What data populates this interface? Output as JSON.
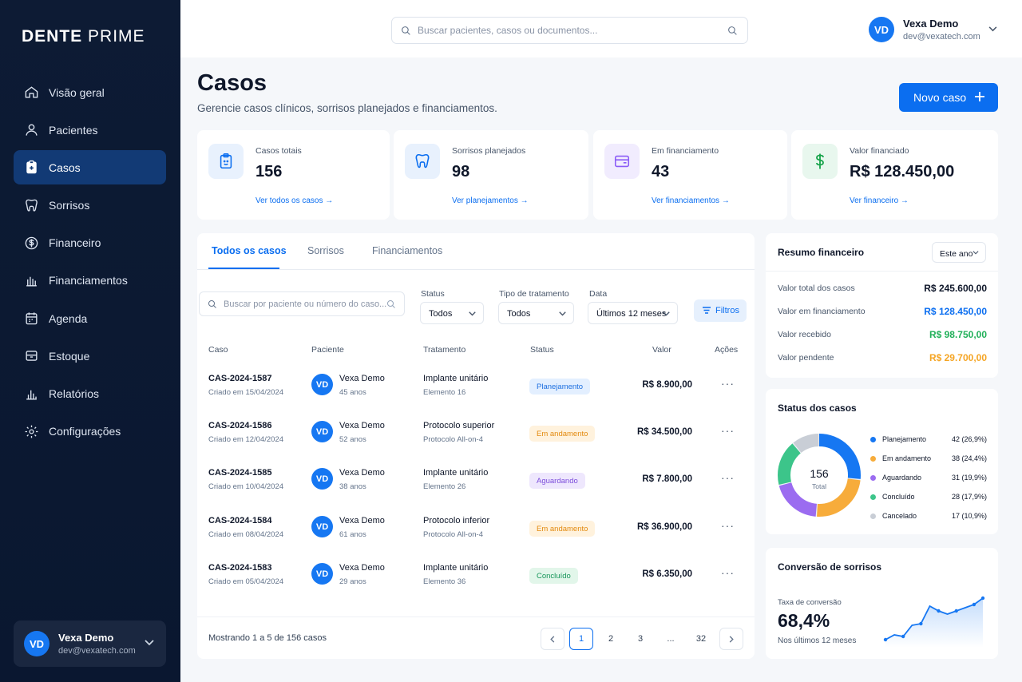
{
  "app": {
    "brand_bold": "DENTE",
    "brand_light": "PRIME"
  },
  "sidebar": {
    "items": [
      {
        "label": "Visão geral",
        "icon": "home-icon"
      },
      {
        "label": "Pacientes",
        "icon": "user-icon"
      },
      {
        "label": "Casos",
        "icon": "clipboard-icon",
        "active": true
      },
      {
        "label": "Sorrisos",
        "icon": "tooth-icon"
      },
      {
        "label": "Financeiro",
        "icon": "dollar-icon"
      },
      {
        "label": "Financiamentos",
        "icon": "bank-icon"
      },
      {
        "label": "Agenda",
        "icon": "calendar-icon"
      },
      {
        "label": "Estoque",
        "icon": "box-icon"
      },
      {
        "label": "Relatórios",
        "icon": "bar-chart-icon"
      },
      {
        "label": "Configurações",
        "icon": "gear-icon"
      }
    ],
    "user": {
      "initials": "VD",
      "name": "Vexa Demo",
      "email": "dev@vexatech.com"
    }
  },
  "header": {
    "search_placeholder": "Buscar pacientes, casos ou documentos...",
    "user": {
      "initials": "VD",
      "name": "Vexa Demo",
      "email": "dev@vexatech.com"
    }
  },
  "page": {
    "title": "Casos",
    "subtitle": "Gerencie casos clínicos, sorrisos planejados e financiamentos.",
    "new_button": "Novo caso"
  },
  "stats": [
    {
      "label": "Casos totais",
      "value": "156",
      "link": "Ver todos os casos →",
      "icon": "clipboard-icon",
      "color": "#0b6ef0",
      "bg": "#e8f1fd"
    },
    {
      "label": "Sorrisos planejados",
      "value": "98",
      "link": "Ver planejamentos →",
      "icon": "tooth-icon",
      "color": "#0b6ef0",
      "bg": "#e8f1fd"
    },
    {
      "label": "Em financiamento",
      "value": "43",
      "link": "Ver financiamentos →",
      "icon": "wallet-icon",
      "color": "#8b5cf6",
      "bg": "#f1ecfe"
    },
    {
      "label": "Valor financiado",
      "value": "R$ 128.450,00",
      "link": "Ver financeiro →",
      "icon": "dollar-icon",
      "color": "#16a34a",
      "bg": "#e8f7ee"
    }
  ],
  "tabs": [
    "Todos os casos",
    "Sorrisos",
    "Financiamentos"
  ],
  "filters": {
    "search_placeholder": "Buscar por paciente ou número do caso...",
    "status_label": "Status",
    "status_value": "Todos",
    "treatment_label": "Tipo de tratamento",
    "treatment_value": "Todos",
    "date_label": "Data",
    "date_value": "Últimos 12 meses",
    "filter_button": "Filtros"
  },
  "table": {
    "headers": [
      "Caso",
      "Paciente",
      "Tratamento",
      "Status",
      "Valor",
      "Ações"
    ],
    "rows": [
      {
        "id": "CAS-2024-1587",
        "date": "Criado em 15/04/2024",
        "initials": "VD",
        "patient": "Vexa Demo",
        "age": "45 anos",
        "treatment": "Implante unitário",
        "detail": "Elemento 16",
        "status": "Planejamento",
        "status_color": "#1d6fe0",
        "status_bg": "#e3efff",
        "value": "R$ 8.900,00",
        "more": "···"
      },
      {
        "id": "CAS-2024-1586",
        "date": "Criado em 12/04/2024",
        "initials": "VD",
        "patient": "Vexa Demo",
        "age": "52 anos",
        "treatment": "Protocolo superior",
        "detail": "Protocolo All-on-4",
        "status": "Em andamento",
        "status_color": "#e38a0f",
        "status_bg": "#fff2dd",
        "value": "R$ 34.500,00",
        "more": "···"
      },
      {
        "id": "CAS-2024-1585",
        "date": "Criado em 10/04/2024",
        "initials": "VD",
        "patient": "Vexa Demo",
        "age": "38 anos",
        "treatment": "Implante unitário",
        "detail": "Elemento 26",
        "status": "Aguardando",
        "status_color": "#7c4ddb",
        "status_bg": "#eee7fd",
        "value": "R$ 7.800,00",
        "more": "···"
      },
      {
        "id": "CAS-2024-1584",
        "date": "Criado em 08/04/2024",
        "initials": "VD",
        "patient": "Vexa Demo",
        "age": "61 anos",
        "treatment": "Protocolo inferior",
        "detail": "Protocolo All-on-4",
        "status": "Em andamento",
        "status_color": "#e38a0f",
        "status_bg": "#fff2dd",
        "value": "R$ 36.900,00",
        "more": "···"
      },
      {
        "id": "CAS-2024-1583",
        "date": "Criado em 05/04/2024",
        "initials": "VD",
        "patient": "Vexa Demo",
        "age": "29 anos",
        "treatment": "Implante unitário",
        "detail": "Elemento 36",
        "status": "Concluído",
        "status_color": "#17965a",
        "status_bg": "#e2f6ea",
        "value": "R$ 6.350,00",
        "more": "···"
      }
    ]
  },
  "pagination": {
    "info": "Mostrando 1 a 5 de 156 casos",
    "pages": [
      "1",
      "2",
      "3",
      "...",
      "32"
    ],
    "current": "1"
  },
  "financial_summary": {
    "title": "Resumo financeiro",
    "period": "Este ano",
    "rows": [
      {
        "label": "Valor total dos casos",
        "value": "R$ 245.600,00",
        "color": "#0f172a"
      },
      {
        "label": "Valor em financiamento",
        "value": "R$ 128.450,00",
        "color": "#0b6ef0"
      },
      {
        "label": "Valor recebido",
        "value": "R$ 98.750,00",
        "color": "#22b05a"
      },
      {
        "label": "Valor pendente",
        "value": "R$ 29.700,00",
        "color": "#f5a524"
      }
    ]
  },
  "case_status": {
    "title": "Status dos casos",
    "total": "156",
    "total_label": "Total",
    "items": [
      {
        "label": "Planejamento",
        "value": "42 (26,9%)",
        "count": 42,
        "color": "#1677f2"
      },
      {
        "label": "Em andamento",
        "value": "38 (24,4%)",
        "count": 38,
        "color": "#f7ac3b"
      },
      {
        "label": "Aguardando",
        "value": "31 (19,9%)",
        "count": 31,
        "color": "#9b6cf0"
      },
      {
        "label": "Concluído",
        "value": "28 (17,9%)",
        "count": 28,
        "color": "#3cc58a"
      },
      {
        "label": "Cancelado",
        "value": "17 (10,9%)",
        "count": 17,
        "color": "#c9ced6"
      }
    ]
  },
  "conversion": {
    "title": "Conversão de sorrisos",
    "rate_label": "Taxa de conversão",
    "rate": "68,4%",
    "period": "Nos últimos 12 meses",
    "trend": [
      52,
      55,
      54,
      61,
      62,
      73,
      70,
      68,
      70,
      72,
      74,
      78
    ]
  }
}
